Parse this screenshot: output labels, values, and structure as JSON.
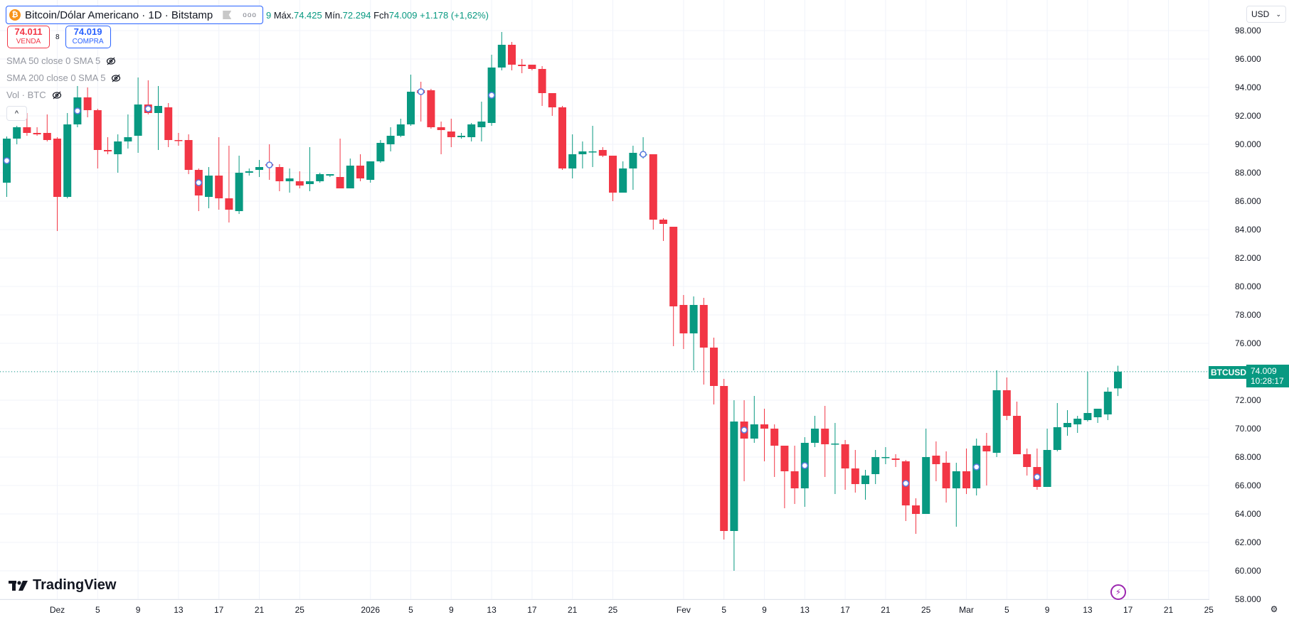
{
  "header": {
    "symbol_icon": "bitcoin-icon",
    "title": "Bitcoin/Dólar Americano · 1D · Bitstamp",
    "more_label": "ooo",
    "ohlc_prefix": "9",
    "high_label": "Máx.",
    "high_value": "74.425",
    "low_label": "Mín.",
    "low_value": "72.294",
    "close_label": "Fch",
    "close_value": "74.009",
    "change": "+1.178 (+1,62%)"
  },
  "trade": {
    "sell_price": "74.011",
    "sell_label": "VENDA",
    "spread": "8",
    "buy_price": "74.019",
    "buy_label": "COMPRA"
  },
  "indicators": [
    {
      "label": "SMA 50 close 0 SMA 5",
      "icon": "eye-off-icon"
    },
    {
      "label": "SMA 200 close 0 SMA 5",
      "icon": "eye-off-icon"
    },
    {
      "label": "Vol · BTC",
      "icon": "eye-off-icon"
    }
  ],
  "collapse_icon": "^",
  "currency": {
    "label": "USD",
    "icon": "chevron-down-icon"
  },
  "last_price": {
    "symbol": "BTCUSD",
    "price": "74.009",
    "countdown": "10:28:17"
  },
  "logo": {
    "mark": "TV",
    "text": "TradingView"
  },
  "bolt_icon": "⚡",
  "settings_icon": "⚙",
  "colors": {
    "up": "#089981",
    "down": "#f23645",
    "grid": "#f0f3fa",
    "accent": "#2962ff"
  },
  "chart_data": {
    "type": "candlestick",
    "title": "Bitcoin/Dólar Americano · 1D · Bitstamp",
    "xlabel": "",
    "ylabel": "USD",
    "ylim": [
      57000,
      99000
    ],
    "y_ticks": [
      "98.000",
      "96.000",
      "94.000",
      "92.000",
      "90.000",
      "88.000",
      "86.000",
      "84.000",
      "82.000",
      "80.000",
      "78.000",
      "76.000",
      "72.000",
      "70.000",
      "68.000",
      "66.000",
      "64.000",
      "62.000",
      "60.000",
      "58.000"
    ],
    "y_tick_values": [
      98000,
      96000,
      94000,
      92000,
      90000,
      88000,
      86000,
      84000,
      82000,
      80000,
      78000,
      76000,
      72000,
      70000,
      68000,
      66000,
      64000,
      62000,
      60000,
      58000
    ],
    "x_ticks": [
      {
        "label": "Dez",
        "idx": 5
      },
      {
        "label": "5",
        "idx": 9
      },
      {
        "label": "9",
        "idx": 13
      },
      {
        "label": "13",
        "idx": 17
      },
      {
        "label": "17",
        "idx": 21
      },
      {
        "label": "21",
        "idx": 25
      },
      {
        "label": "25",
        "idx": 29
      },
      {
        "label": "2026",
        "idx": 36
      },
      {
        "label": "5",
        "idx": 40
      },
      {
        "label": "9",
        "idx": 44
      },
      {
        "label": "13",
        "idx": 48
      },
      {
        "label": "17",
        "idx": 52
      },
      {
        "label": "21",
        "idx": 56
      },
      {
        "label": "25",
        "idx": 60
      },
      {
        "label": "Fev",
        "idx": 67
      },
      {
        "label": "5",
        "idx": 71
      },
      {
        "label": "9",
        "idx": 75
      },
      {
        "label": "13",
        "idx": 79
      },
      {
        "label": "17",
        "idx": 83
      },
      {
        "label": "21",
        "idx": 87
      },
      {
        "label": "25",
        "idx": 91
      },
      {
        "label": "Mar",
        "idx": 95
      },
      {
        "label": "5",
        "idx": 99
      },
      {
        "label": "9",
        "idx": 103
      },
      {
        "label": "13",
        "idx": 107
      },
      {
        "label": "17",
        "idx": 111
      },
      {
        "label": "21",
        "idx": 115
      },
      {
        "label": "25",
        "idx": 119
      }
    ],
    "start_date": "Nov 26",
    "end_date": "Mar 16",
    "ohlc": [
      [
        87300,
        90550,
        86300,
        90400
      ],
      [
        90400,
        91300,
        90000,
        91200
      ],
      [
        91200,
        92200,
        90600,
        90800
      ],
      [
        90800,
        91200,
        90600,
        90700
      ],
      [
        90800,
        92100,
        90200,
        90300
      ],
      [
        90400,
        90500,
        83900,
        86300
      ],
      [
        86300,
        92200,
        86200,
        91400
      ],
      [
        91400,
        94100,
        91200,
        93300
      ],
      [
        93300,
        94000,
        91900,
        92400
      ],
      [
        92400,
        92500,
        88300,
        89600
      ],
      [
        89600,
        90500,
        89300,
        89500
      ],
      [
        89300,
        90700,
        88000,
        90200
      ],
      [
        90200,
        92100,
        89700,
        90500
      ],
      [
        90600,
        94700,
        89400,
        92800
      ],
      [
        92800,
        94500,
        92100,
        92200
      ],
      [
        92200,
        94100,
        89600,
        92700
      ],
      [
        92600,
        92900,
        89800,
        90300
      ],
      [
        90300,
        90800,
        89900,
        90250
      ],
      [
        90300,
        90700,
        87900,
        88200
      ],
      [
        88200,
        88300,
        85300,
        86400
      ],
      [
        86300,
        88400,
        85500,
        87800
      ],
      [
        87800,
        90500,
        85400,
        86200
      ],
      [
        86200,
        89900,
        84500,
        85400
      ],
      [
        85300,
        89200,
        85100,
        88000
      ],
      [
        88000,
        88300,
        87800,
        88100
      ],
      [
        88200,
        88900,
        87700,
        88400
      ],
      [
        88600,
        90000,
        87500,
        88500
      ],
      [
        88400,
        88600,
        86700,
        87400
      ],
      [
        87400,
        88300,
        86600,
        87600
      ],
      [
        87400,
        88100,
        86900,
        87100
      ],
      [
        87200,
        89800,
        86700,
        87400
      ],
      [
        87400,
        88000,
        87300,
        87900
      ],
      [
        87800,
        87900,
        87700,
        87900
      ],
      [
        87700,
        90400,
        86900,
        86900
      ],
      [
        86900,
        89000,
        86900,
        88500
      ],
      [
        88500,
        89300,
        87400,
        87600
      ],
      [
        87500,
        88800,
        87300,
        88800
      ],
      [
        88800,
        90300,
        88700,
        90100
      ],
      [
        90000,
        91200,
        89500,
        90600
      ],
      [
        90600,
        91800,
        90500,
        91400
      ],
      [
        91400,
        94900,
        91300,
        93700
      ],
      [
        93800,
        94400,
        91600,
        93600
      ],
      [
        93800,
        93900,
        91100,
        91200
      ],
      [
        91200,
        91600,
        89300,
        91000
      ],
      [
        90900,
        91800,
        89800,
        90500
      ],
      [
        90500,
        90800,
        90400,
        90600
      ],
      [
        90500,
        91500,
        90200,
        91400
      ],
      [
        91200,
        93000,
        90200,
        91600
      ],
      [
        91500,
        96300,
        91300,
        95400
      ],
      [
        95400,
        97900,
        95200,
        97000
      ],
      [
        97000,
        97200,
        95200,
        95600
      ],
      [
        95600,
        96000,
        95000,
        95500
      ],
      [
        95600,
        95600,
        95200,
        95300
      ],
      [
        95300,
        95500,
        92700,
        93600
      ],
      [
        93600,
        93600,
        92000,
        92600
      ],
      [
        92600,
        92700,
        88200,
        88300
      ],
      [
        88300,
        90700,
        87600,
        89300
      ],
      [
        89300,
        90200,
        88300,
        89500
      ],
      [
        89500,
        91300,
        88400,
        89500
      ],
      [
        89600,
        89800,
        89100,
        89200
      ],
      [
        89200,
        89200,
        86000,
        86600
      ],
      [
        86600,
        88800,
        86600,
        88300
      ],
      [
        88300,
        89900,
        86800,
        89400
      ],
      [
        89300,
        90500,
        89000,
        89300
      ],
      [
        89300,
        89300,
        84000,
        84700
      ],
      [
        84700,
        84800,
        83200,
        84400
      ],
      [
        84200,
        84200,
        75800,
        78600
      ],
      [
        78700,
        79400,
        75600,
        76700
      ],
      [
        76700,
        79300,
        74100,
        78700
      ],
      [
        78700,
        79200,
        73100,
        75700
      ],
      [
        75700,
        76400,
        71700,
        73000
      ],
      [
        73000,
        73500,
        62200,
        62800
      ],
      [
        62800,
        72000,
        60000,
        70500
      ],
      [
        70500,
        72000,
        66300,
        69300
      ],
      [
        69300,
        72300,
        69000,
        70300
      ],
      [
        70300,
        71400,
        67700,
        70000
      ],
      [
        70000,
        70300,
        66600,
        68800
      ],
      [
        68800,
        68800,
        64400,
        67000
      ],
      [
        67000,
        68800,
        64700,
        65800
      ],
      [
        65800,
        69400,
        64500,
        69000
      ],
      [
        69000,
        70900,
        68700,
        70000
      ],
      [
        70000,
        71600,
        66600,
        68900
      ],
      [
        68900,
        70400,
        65400,
        68950
      ],
      [
        68900,
        69200,
        65700,
        67200
      ],
      [
        67200,
        68500,
        65500,
        66100
      ],
      [
        66100,
        67100,
        65000,
        66700
      ],
      [
        66800,
        68500,
        66100,
        68000
      ],
      [
        68000,
        68700,
        67500,
        68000
      ],
      [
        67900,
        68200,
        67300,
        67800
      ],
      [
        67700,
        67800,
        63500,
        64600
      ],
      [
        64600,
        65100,
        62600,
        64000
      ],
      [
        64000,
        70000,
        64000,
        68000
      ],
      [
        68100,
        69100,
        66300,
        67500
      ],
      [
        67600,
        68400,
        64800,
        65800
      ],
      [
        65800,
        67600,
        63100,
        67000
      ],
      [
        67000,
        68600,
        65400,
        65800
      ],
      [
        65800,
        69300,
        65300,
        68800
      ],
      [
        68800,
        69700,
        66000,
        68400
      ],
      [
        68300,
        74100,
        68000,
        72700
      ],
      [
        72700,
        73600,
        70600,
        70900
      ],
      [
        70900,
        71900,
        68500,
        68200
      ],
      [
        68200,
        68600,
        66700,
        67300
      ],
      [
        67300,
        68600,
        65700,
        65900
      ],
      [
        65900,
        70000,
        65900,
        68500
      ],
      [
        68500,
        71800,
        68400,
        70100
      ],
      [
        70100,
        71300,
        69500,
        70400
      ],
      [
        70300,
        70900,
        69700,
        70700
      ],
      [
        70600,
        74000,
        70500,
        71100
      ],
      [
        70800,
        71400,
        70400,
        71400
      ],
      [
        71000,
        72900,
        70600,
        72600
      ],
      [
        72831,
        74425,
        72294,
        74009
      ]
    ],
    "markers_idx": [
      0,
      7,
      14,
      19,
      26,
      41,
      48,
      63,
      73,
      79,
      89,
      96,
      102
    ]
  }
}
